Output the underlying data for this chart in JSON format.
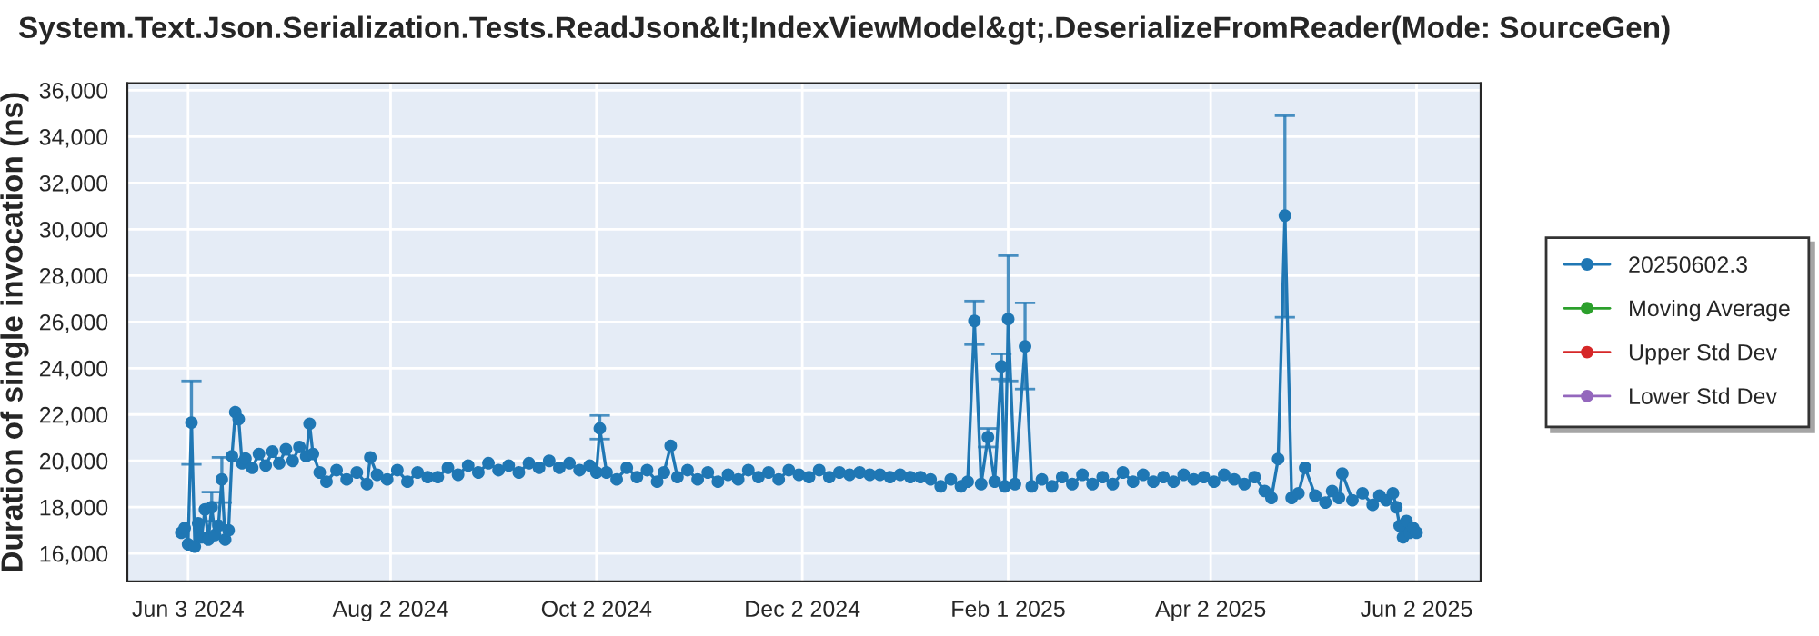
{
  "chart_data": {
    "type": "line",
    "title": "System.Text.Json.Serialization.Tests.ReadJson&lt;IndexViewModel&gt;.DeserializeFromReader(Mode: SourceGen)",
    "ylabel": "Duration of single invocation (ns)",
    "x": [
      "2024-06-01",
      "2024-06-02",
      "2024-06-03",
      "2024-06-04",
      "2024-06-05",
      "2024-06-06",
      "2024-06-07",
      "2024-06-08",
      "2024-06-09",
      "2024-06-10",
      "2024-06-11",
      "2024-06-12",
      "2024-06-13",
      "2024-06-14",
      "2024-06-15",
      "2024-06-16",
      "2024-06-17",
      "2024-06-18",
      "2024-06-19",
      "2024-06-20",
      "2024-06-22",
      "2024-06-24",
      "2024-06-26",
      "2024-06-28",
      "2024-06-30",
      "2024-07-02",
      "2024-07-04",
      "2024-07-06",
      "2024-07-08",
      "2024-07-09",
      "2024-07-10",
      "2024-07-12",
      "2024-07-14",
      "2024-07-17",
      "2024-07-20",
      "2024-07-23",
      "2024-07-26",
      "2024-07-27",
      "2024-07-29",
      "2024-08-01",
      "2024-08-04",
      "2024-08-07",
      "2024-08-10",
      "2024-08-13",
      "2024-08-16",
      "2024-08-19",
      "2024-08-22",
      "2024-08-25",
      "2024-08-28",
      "2024-08-31",
      "2024-09-03",
      "2024-09-06",
      "2024-09-09",
      "2024-09-12",
      "2024-09-15",
      "2024-09-18",
      "2024-09-21",
      "2024-09-24",
      "2024-09-27",
      "2024-09-30",
      "2024-10-02",
      "2024-10-03",
      "2024-10-05",
      "2024-10-08",
      "2024-10-11",
      "2024-10-14",
      "2024-10-17",
      "2024-10-20",
      "2024-10-22",
      "2024-10-24",
      "2024-10-26",
      "2024-10-29",
      "2024-11-01",
      "2024-11-04",
      "2024-11-07",
      "2024-11-10",
      "2024-11-13",
      "2024-11-16",
      "2024-11-19",
      "2024-11-22",
      "2024-11-25",
      "2024-11-28",
      "2024-12-01",
      "2024-12-04",
      "2024-12-07",
      "2024-12-10",
      "2024-12-13",
      "2024-12-16",
      "2024-12-19",
      "2024-12-22",
      "2024-12-25",
      "2024-12-28",
      "2024-12-31",
      "2025-01-03",
      "2025-01-06",
      "2025-01-09",
      "2025-01-12",
      "2025-01-15",
      "2025-01-18",
      "2025-01-20",
      "2025-01-22",
      "2025-01-24",
      "2025-01-26",
      "2025-01-28",
      "2025-01-30",
      "2025-01-31",
      "2025-02-01",
      "2025-02-03",
      "2025-02-06",
      "2025-02-08",
      "2025-02-11",
      "2025-02-14",
      "2025-02-17",
      "2025-02-20",
      "2025-02-23",
      "2025-02-26",
      "2025-03-01",
      "2025-03-04",
      "2025-03-07",
      "2025-03-10",
      "2025-03-13",
      "2025-03-16",
      "2025-03-19",
      "2025-03-22",
      "2025-03-25",
      "2025-03-28",
      "2025-03-31",
      "2025-04-03",
      "2025-04-06",
      "2025-04-09",
      "2025-04-12",
      "2025-04-15",
      "2025-04-18",
      "2025-04-20",
      "2025-04-22",
      "2025-04-24",
      "2025-04-26",
      "2025-04-28",
      "2025-04-30",
      "2025-05-03",
      "2025-05-06",
      "2025-05-08",
      "2025-05-10",
      "2025-05-11",
      "2025-05-14",
      "2025-05-17",
      "2025-05-20",
      "2025-05-22",
      "2025-05-24",
      "2025-05-26",
      "2025-05-27",
      "2025-05-28",
      "2025-05-29",
      "2025-05-30",
      "2025-05-31",
      "2025-06-01",
      "2025-06-02"
    ],
    "series": [
      {
        "name": "20250602.3",
        "color": "#1f77b4",
        "values": [
          16900,
          17100,
          16400,
          21650,
          16300,
          17300,
          16700,
          17900,
          16600,
          18000,
          16800,
          17200,
          19200,
          16600,
          17000,
          20200,
          22100,
          21800,
          19900,
          20100,
          19700,
          20300,
          19800,
          20400,
          19900,
          20500,
          20000,
          20600,
          20200,
          21600,
          20300,
          19500,
          19100,
          19600,
          19200,
          19500,
          19000,
          20150,
          19400,
          19200,
          19600,
          19100,
          19500,
          19300,
          19300,
          19700,
          19400,
          19800,
          19500,
          19900,
          19600,
          19800,
          19500,
          19900,
          19700,
          20000,
          19700,
          19900,
          19600,
          19800,
          19500,
          21400,
          19500,
          19200,
          19700,
          19300,
          19600,
          19100,
          19500,
          20650,
          19300,
          19600,
          19200,
          19500,
          19100,
          19400,
          19200,
          19600,
          19300,
          19500,
          19200,
          19600,
          19400,
          19300,
          19600,
          19300,
          19500,
          19400,
          19500,
          19400,
          19400,
          19300,
          19400,
          19300,
          19300,
          19200,
          18900,
          19200,
          18900,
          19100,
          26040,
          19000,
          21020,
          19100,
          24080,
          18900,
          26120,
          19000,
          24940,
          18900,
          19200,
          18900,
          19300,
          19000,
          19400,
          19000,
          19300,
          19000,
          19500,
          19100,
          19400,
          19100,
          19300,
          19100,
          19400,
          19200,
          19300,
          19100,
          19400,
          19200,
          19000,
          19300,
          18700,
          18400,
          20080,
          30590,
          18400,
          18600,
          19700,
          18500,
          18200,
          18700,
          18400,
          19450,
          18300,
          18600,
          18100,
          18500,
          18300,
          18600,
          18000,
          17200,
          16700,
          17400,
          16900,
          17100,
          16900
        ],
        "errors": [
          null,
          null,
          null,
          [
            19850,
            23450
          ],
          null,
          null,
          null,
          null,
          null,
          [
            17400,
            18650
          ],
          null,
          null,
          [
            18200,
            20150
          ],
          null,
          null,
          null,
          null,
          null,
          null,
          null,
          null,
          null,
          null,
          null,
          null,
          null,
          null,
          null,
          null,
          null,
          null,
          null,
          null,
          null,
          null,
          null,
          null,
          null,
          null,
          null,
          null,
          null,
          null,
          null,
          null,
          null,
          null,
          null,
          null,
          null,
          null,
          null,
          null,
          null,
          null,
          null,
          null,
          null,
          null,
          null,
          null,
          [
            20940,
            21960
          ],
          null,
          null,
          null,
          null,
          null,
          null,
          null,
          null,
          null,
          null,
          null,
          null,
          null,
          null,
          null,
          null,
          null,
          null,
          null,
          null,
          null,
          null,
          null,
          null,
          null,
          null,
          null,
          null,
          null,
          null,
          null,
          null,
          null,
          null,
          null,
          null,
          null,
          null,
          [
            25020,
            26900
          ],
          null,
          [
            20600,
            21400
          ],
          null,
          [
            23530,
            24620
          ],
          null,
          [
            23450,
            28860
          ],
          null,
          [
            23100,
            26820
          ],
          null,
          null,
          null,
          null,
          null,
          null,
          null,
          null,
          null,
          null,
          null,
          null,
          null,
          null,
          null,
          null,
          null,
          null,
          null,
          null,
          null,
          null,
          null,
          null,
          null,
          null,
          [
            26200,
            34900
          ],
          null,
          null,
          null,
          null,
          null,
          null,
          null,
          null,
          null,
          null,
          null,
          null,
          null,
          null,
          null,
          null,
          null,
          null,
          null,
          null,
          null
        ]
      },
      {
        "name": "Moving Average",
        "color": "#2ca02c",
        "values": [
          null,
          null,
          null,
          null,
          null,
          null,
          null,
          null,
          null,
          null,
          null,
          null,
          null,
          null,
          null,
          null,
          null,
          null,
          null,
          null,
          null,
          null,
          null,
          null,
          null,
          null,
          null,
          null,
          null,
          null,
          null,
          null,
          null,
          null,
          null,
          null,
          null,
          null,
          null,
          null,
          null,
          null,
          null,
          null,
          null,
          null,
          null,
          null,
          null,
          null,
          null,
          null,
          null,
          null,
          null,
          null,
          null,
          null,
          null,
          null,
          null,
          null,
          null,
          null,
          null,
          null,
          null,
          null,
          null,
          null,
          null,
          null,
          null,
          null,
          null,
          null,
          null,
          null,
          null,
          null,
          null,
          null,
          null,
          null,
          null,
          null,
          null,
          null,
          null,
          null,
          null,
          null,
          null,
          null,
          null,
          null,
          null,
          null,
          null,
          null,
          null,
          null,
          null,
          null,
          null,
          null,
          null,
          null,
          null,
          null,
          null,
          null,
          null,
          null,
          null,
          null,
          null,
          null,
          null,
          null,
          null,
          null,
          null,
          null,
          null,
          null,
          null,
          null,
          null,
          null,
          null,
          null,
          null,
          null,
          null,
          null,
          null,
          null,
          null,
          null,
          null,
          null,
          null,
          null,
          null,
          null,
          null,
          null,
          null,
          null,
          null,
          null,
          null,
          null,
          null,
          null,
          null
        ]
      },
      {
        "name": "Upper Std Dev",
        "color": "#d62728",
        "values": [
          null,
          null,
          null,
          null,
          null,
          null,
          null,
          null,
          null,
          null,
          null,
          null,
          null,
          null,
          null,
          null,
          null,
          null,
          null,
          null,
          null,
          null,
          null,
          null,
          null,
          null,
          null,
          null,
          null,
          null,
          null,
          null,
          null,
          null,
          null,
          null,
          null,
          null,
          null,
          null,
          null,
          null,
          null,
          null,
          null,
          null,
          null,
          null,
          null,
          null,
          null,
          null,
          null,
          null,
          null,
          null,
          null,
          null,
          null,
          null,
          null,
          null,
          null,
          null,
          null,
          null,
          null,
          null,
          null,
          null,
          null,
          null,
          null,
          null,
          null,
          null,
          null,
          null,
          null,
          null,
          null,
          null,
          null,
          null,
          null,
          null,
          null,
          null,
          null,
          null,
          null,
          null,
          null,
          null,
          null,
          null,
          null,
          null,
          null,
          null,
          null,
          null,
          null,
          null,
          null,
          null,
          null,
          null,
          null,
          null,
          null,
          null,
          null,
          null,
          null,
          null,
          null,
          null,
          null,
          null,
          null,
          null,
          null,
          null,
          null,
          null,
          null,
          null,
          null,
          null,
          null,
          null,
          null,
          null,
          null,
          null,
          null,
          null,
          null,
          null,
          null,
          null,
          null,
          null,
          null,
          null,
          null,
          null,
          null,
          null,
          null,
          null,
          null,
          null,
          null,
          null,
          null
        ]
      },
      {
        "name": "Lower Std Dev",
        "color": "#9467bd",
        "values": [
          null,
          null,
          null,
          null,
          null,
          null,
          null,
          null,
          null,
          null,
          null,
          null,
          null,
          null,
          null,
          null,
          null,
          null,
          null,
          null,
          null,
          null,
          null,
          null,
          null,
          null,
          null,
          null,
          null,
          null,
          null,
          null,
          null,
          null,
          null,
          null,
          null,
          null,
          null,
          null,
          null,
          null,
          null,
          null,
          null,
          null,
          null,
          null,
          null,
          null,
          null,
          null,
          null,
          null,
          null,
          null,
          null,
          null,
          null,
          null,
          null,
          null,
          null,
          null,
          null,
          null,
          null,
          null,
          null,
          null,
          null,
          null,
          null,
          null,
          null,
          null,
          null,
          null,
          null,
          null,
          null,
          null,
          null,
          null,
          null,
          null,
          null,
          null,
          null,
          null,
          null,
          null,
          null,
          null,
          null,
          null,
          null,
          null,
          null,
          null,
          null,
          null,
          null,
          null,
          null,
          null,
          null,
          null,
          null,
          null,
          null,
          null,
          null,
          null,
          null,
          null,
          null,
          null,
          null,
          null,
          null,
          null,
          null,
          null,
          null,
          null,
          null,
          null,
          null,
          null,
          null,
          null,
          null,
          null,
          null,
          null,
          null,
          null,
          null,
          null,
          null,
          null,
          null,
          null,
          null,
          null,
          null,
          null,
          null,
          null,
          null,
          null,
          null,
          null,
          null,
          null,
          null
        ]
      }
    ],
    "xlim": [
      "2024-05-16",
      "2025-06-21"
    ],
    "xticks": [
      {
        "value": "2024-06-03",
        "label": "Jun 3 2024"
      },
      {
        "value": "2024-08-02",
        "label": "Aug 2 2024"
      },
      {
        "value": "2024-10-02",
        "label": "Oct 2 2024"
      },
      {
        "value": "2024-12-02",
        "label": "Dec 2 2024"
      },
      {
        "value": "2025-02-01",
        "label": "Feb 1 2025"
      },
      {
        "value": "2025-04-02",
        "label": "Apr 2 2025"
      },
      {
        "value": "2025-06-02",
        "label": "Jun 2 2025"
      }
    ],
    "ylim": [
      14800,
      36300
    ],
    "yticks": [
      {
        "value": 16000,
        "label": "16,000"
      },
      {
        "value": 18000,
        "label": "18,000"
      },
      {
        "value": 20000,
        "label": "20,000"
      },
      {
        "value": 22000,
        "label": "22,000"
      },
      {
        "value": 24000,
        "label": "24,000"
      },
      {
        "value": 26000,
        "label": "26,000"
      },
      {
        "value": 28000,
        "label": "28,000"
      },
      {
        "value": 30000,
        "label": "30,000"
      },
      {
        "value": 32000,
        "label": "32,000"
      },
      {
        "value": 34000,
        "label": "34,000"
      },
      {
        "value": 36000,
        "label": "36,000"
      }
    ],
    "grid": true,
    "legend": "right",
    "marker": "circle",
    "line_style": "solid"
  }
}
